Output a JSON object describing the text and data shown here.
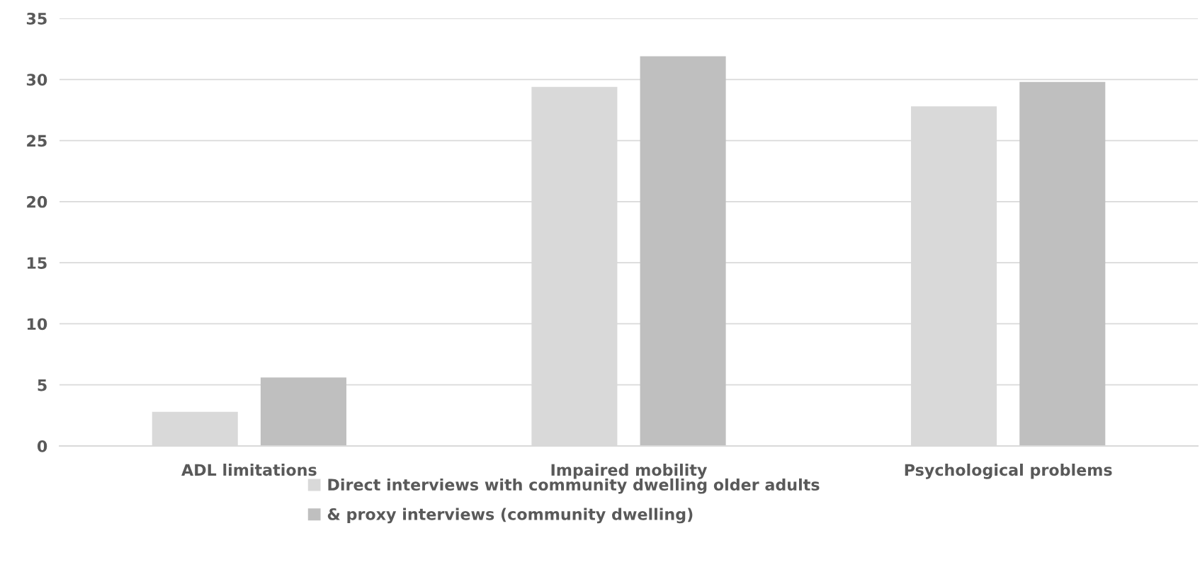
{
  "chart_data": {
    "type": "bar",
    "categories": [
      "ADL limitations",
      "Impaired mobility",
      "Psychological problems"
    ],
    "series": [
      {
        "name": "Direct interviews with community dwelling older adults",
        "color": "#d9d9d9",
        "values": [
          2.8,
          29.4,
          27.8
        ]
      },
      {
        "name": "& proxy interviews (community dwelling)",
        "color": "#bfbfbf",
        "values": [
          5.6,
          31.9,
          29.8
        ]
      }
    ],
    "ylim": [
      0,
      35
    ],
    "yticks": [
      0,
      5,
      10,
      15,
      20,
      25,
      30,
      35
    ],
    "grid": "y",
    "legend": "bottom"
  }
}
